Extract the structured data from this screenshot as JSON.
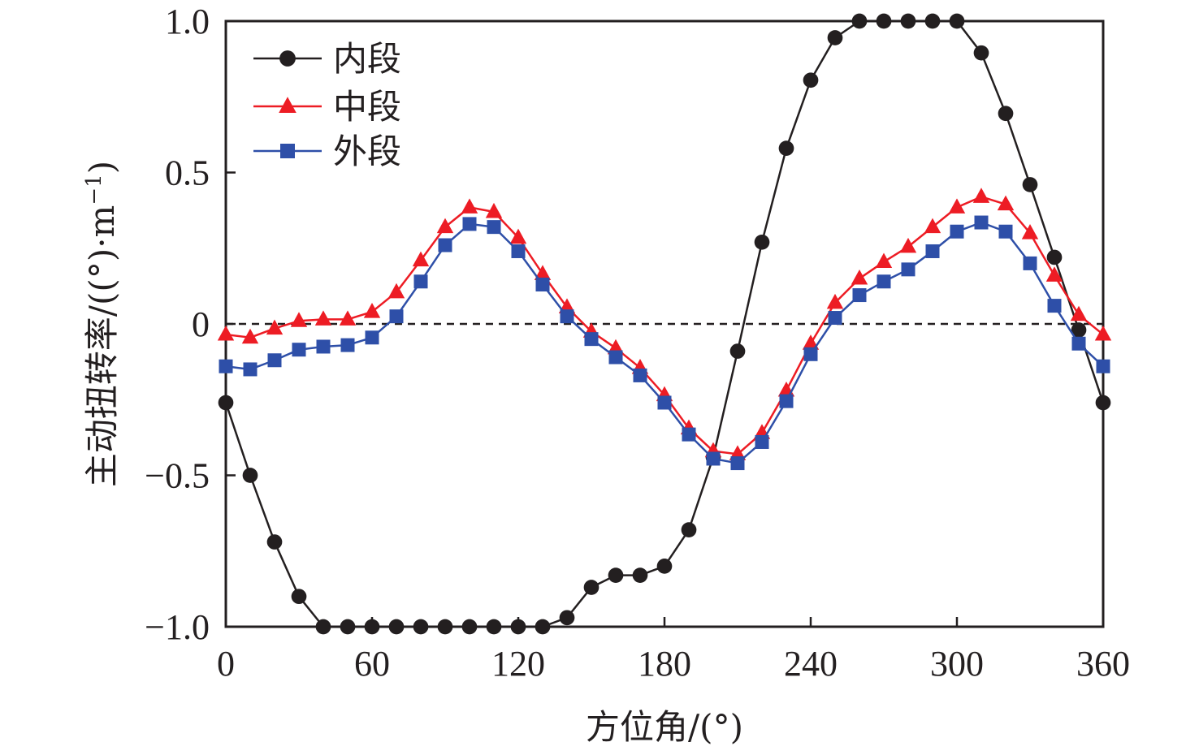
{
  "chart_data": {
    "type": "line",
    "title": "",
    "xlabel": "方位角/(°)",
    "ylabel": "主动扭转率/((°)·m",
    "ylabel_superscript": "−1",
    "ylabel_close": ")",
    "xlim": [
      0,
      360
    ],
    "ylim": [
      -1.0,
      1.0
    ],
    "xticks": [
      0,
      60,
      120,
      180,
      240,
      300,
      360
    ],
    "xtick_labels": [
      "0",
      "60",
      "120",
      "180",
      "240",
      "300",
      "360"
    ],
    "yticks": [
      -1.0,
      -0.5,
      0,
      0.5,
      1.0
    ],
    "ytick_labels": [
      "−1.0",
      "−0.5",
      "0",
      "0.5",
      "1.0"
    ],
    "grid": false,
    "reference_line": {
      "y": 0,
      "style": "dashed"
    },
    "legend_position": "top-left",
    "x": [
      0,
      10,
      20,
      30,
      40,
      50,
      60,
      70,
      80,
      90,
      100,
      110,
      120,
      130,
      140,
      150,
      160,
      170,
      180,
      190,
      200,
      210,
      220,
      230,
      240,
      250,
      260,
      270,
      280,
      290,
      300,
      310,
      320,
      330,
      340,
      350,
      360
    ],
    "series": [
      {
        "name": "内段",
        "color": "#231f20",
        "marker": "circle",
        "values": [
          -0.26,
          -0.5,
          -0.72,
          -0.9,
          -1.0,
          -1.0,
          -1.0,
          -1.0,
          -1.0,
          -1.0,
          -1.0,
          -1.0,
          -1.0,
          -1.0,
          -0.97,
          -0.87,
          -0.83,
          -0.83,
          -0.8,
          -0.68,
          -0.44,
          -0.09,
          0.27,
          0.58,
          0.805,
          0.945,
          1.0,
          1.0,
          1.0,
          1.0,
          1.0,
          0.895,
          0.695,
          0.46,
          0.22,
          -0.02,
          -0.26
        ]
      },
      {
        "name": "中段",
        "color": "#ed1c24",
        "marker": "triangle",
        "values": [
          -0.035,
          -0.045,
          -0.015,
          0.01,
          0.015,
          0.015,
          0.04,
          0.105,
          0.21,
          0.32,
          0.385,
          0.37,
          0.285,
          0.165,
          0.055,
          -0.025,
          -0.08,
          -0.145,
          -0.235,
          -0.345,
          -0.42,
          -0.43,
          -0.36,
          -0.22,
          -0.065,
          0.07,
          0.15,
          0.205,
          0.255,
          0.32,
          0.385,
          0.42,
          0.395,
          0.3,
          0.16,
          0.03,
          -0.035
        ]
      },
      {
        "name": "外段",
        "color": "#2e4fa8",
        "marker": "square",
        "values": [
          -0.14,
          -0.15,
          -0.12,
          -0.085,
          -0.075,
          -0.07,
          -0.045,
          0.025,
          0.14,
          0.26,
          0.33,
          0.32,
          0.24,
          0.13,
          0.025,
          -0.05,
          -0.11,
          -0.17,
          -0.26,
          -0.365,
          -0.445,
          -0.46,
          -0.39,
          -0.255,
          -0.1,
          0.02,
          0.095,
          0.14,
          0.18,
          0.24,
          0.305,
          0.335,
          0.305,
          0.2,
          0.06,
          -0.065,
          -0.14
        ]
      }
    ]
  }
}
